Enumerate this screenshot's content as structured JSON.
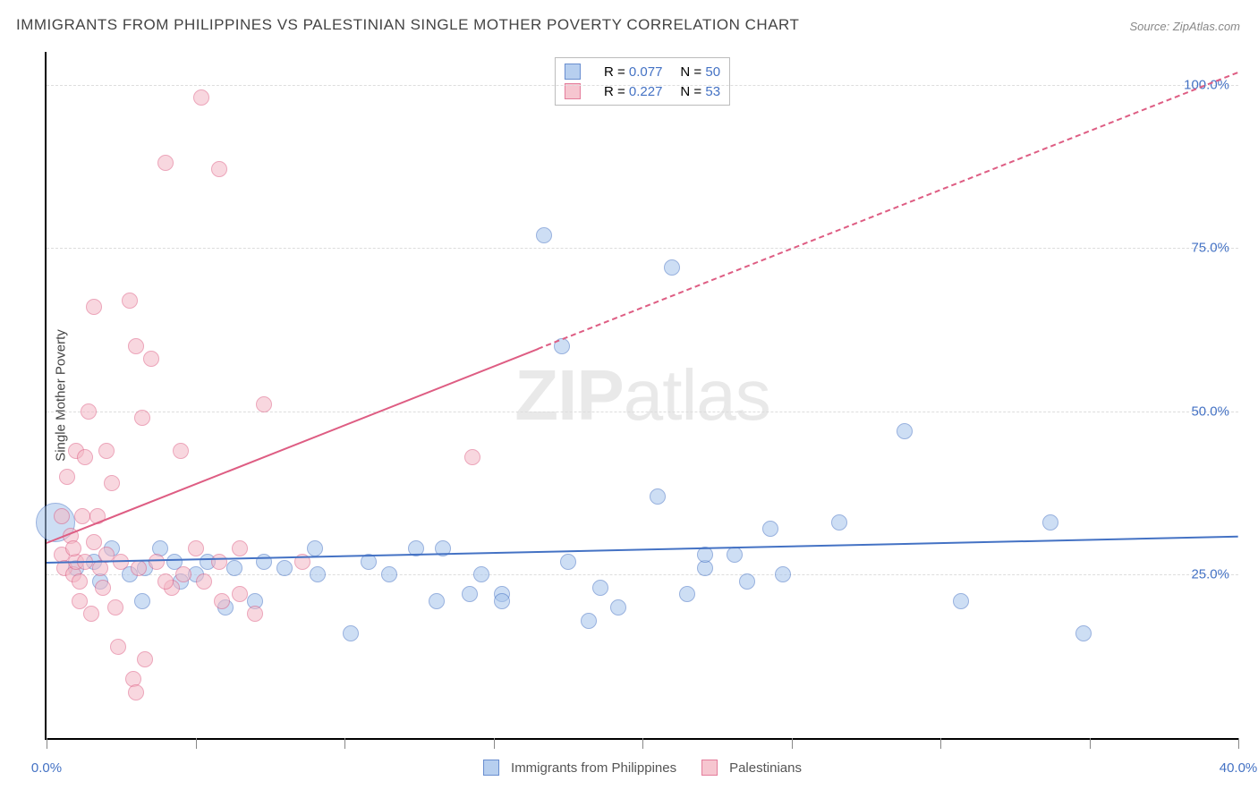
{
  "title": "IMMIGRANTS FROM PHILIPPINES VS PALESTINIAN SINGLE MOTHER POVERTY CORRELATION CHART",
  "source_label": "Source: ZipAtlas.com",
  "ylabel": "Single Mother Poverty",
  "watermark_parts": [
    "ZIP",
    "atlas"
  ],
  "plot": {
    "type": "scatter",
    "xlim": [
      0,
      40
    ],
    "ylim": [
      0,
      105
    ],
    "x_ticks": [
      0,
      40
    ],
    "x_tick_labels": [
      "0.0%",
      "40.0%"
    ],
    "x_minor_ticks": [
      0,
      5,
      10,
      15,
      20,
      25,
      30,
      35,
      40
    ],
    "y_ticks": [
      25,
      50,
      75,
      100
    ],
    "y_tick_labels": [
      "25.0%",
      "50.0%",
      "75.0%",
      "100.0%"
    ],
    "background_color": "#ffffff",
    "grid_color": "#dddddd",
    "axis_color": "#000000",
    "tick_label_color": "#4472c4"
  },
  "series": [
    {
      "name": "Immigrants from Philippines",
      "fill_color": "#a6c4ec",
      "stroke_color": "#4472c4",
      "fill_opacity": 0.55,
      "trend": {
        "x1": 0,
        "y1": 27,
        "x2": 40,
        "y2": 31,
        "color": "#4472c4",
        "width": 2.5,
        "solid_to_x": 40
      },
      "legend_stats": {
        "R": "0.077",
        "N": "50"
      },
      "points": [
        {
          "x": 0.3,
          "y": 33,
          "r": 22
        },
        {
          "x": 1.0,
          "y": 26,
          "r": 9
        },
        {
          "x": 1.6,
          "y": 27,
          "r": 9
        },
        {
          "x": 1.8,
          "y": 24,
          "r": 9
        },
        {
          "x": 2.2,
          "y": 29,
          "r": 9
        },
        {
          "x": 2.8,
          "y": 25,
          "r": 9
        },
        {
          "x": 3.2,
          "y": 21,
          "r": 9
        },
        {
          "x": 3.3,
          "y": 26,
          "r": 9
        },
        {
          "x": 3.8,
          "y": 29,
          "r": 9
        },
        {
          "x": 4.3,
          "y": 27,
          "r": 9
        },
        {
          "x": 4.5,
          "y": 24,
          "r": 9
        },
        {
          "x": 5.0,
          "y": 25,
          "r": 9
        },
        {
          "x": 5.4,
          "y": 27,
          "r": 9
        },
        {
          "x": 6.0,
          "y": 20,
          "r": 9
        },
        {
          "x": 6.3,
          "y": 26,
          "r": 9
        },
        {
          "x": 7.0,
          "y": 21,
          "r": 9
        },
        {
          "x": 7.3,
          "y": 27,
          "r": 9
        },
        {
          "x": 8.0,
          "y": 26,
          "r": 9
        },
        {
          "x": 9.0,
          "y": 29,
          "r": 9
        },
        {
          "x": 9.1,
          "y": 25,
          "r": 9
        },
        {
          "x": 10.2,
          "y": 16,
          "r": 9
        },
        {
          "x": 10.8,
          "y": 27,
          "r": 9
        },
        {
          "x": 11.5,
          "y": 25,
          "r": 9
        },
        {
          "x": 12.4,
          "y": 29,
          "r": 9
        },
        {
          "x": 13.1,
          "y": 21,
          "r": 9
        },
        {
          "x": 13.3,
          "y": 29,
          "r": 9
        },
        {
          "x": 14.2,
          "y": 22,
          "r": 9
        },
        {
          "x": 14.6,
          "y": 25,
          "r": 9
        },
        {
          "x": 15.3,
          "y": 22,
          "r": 9
        },
        {
          "x": 15.3,
          "y": 21,
          "r": 9
        },
        {
          "x": 16.7,
          "y": 77,
          "r": 9
        },
        {
          "x": 17.3,
          "y": 60,
          "r": 9
        },
        {
          "x": 18.2,
          "y": 18,
          "r": 9
        },
        {
          "x": 18.6,
          "y": 23,
          "r": 9
        },
        {
          "x": 19.2,
          "y": 20,
          "r": 9
        },
        {
          "x": 20.5,
          "y": 37,
          "r": 9
        },
        {
          "x": 21.0,
          "y": 72,
          "r": 9
        },
        {
          "x": 22.1,
          "y": 26,
          "r": 9
        },
        {
          "x": 22.1,
          "y": 28,
          "r": 9
        },
        {
          "x": 23.1,
          "y": 28,
          "r": 9
        },
        {
          "x": 23.5,
          "y": 24,
          "r": 9
        },
        {
          "x": 24.3,
          "y": 32,
          "r": 9
        },
        {
          "x": 24.7,
          "y": 25,
          "r": 9
        },
        {
          "x": 26.6,
          "y": 33,
          "r": 9
        },
        {
          "x": 28.8,
          "y": 47,
          "r": 9
        },
        {
          "x": 30.7,
          "y": 21,
          "r": 9
        },
        {
          "x": 33.7,
          "y": 33,
          "r": 9
        },
        {
          "x": 34.8,
          "y": 16,
          "r": 9
        },
        {
          "x": 21.5,
          "y": 22,
          "r": 9
        },
        {
          "x": 17.5,
          "y": 27,
          "r": 9
        }
      ]
    },
    {
      "name": "Palestinians",
      "fill_color": "#f4b8c5",
      "stroke_color": "#de5d83",
      "fill_opacity": 0.55,
      "trend": {
        "x1": 0,
        "y1": 30,
        "x2": 40,
        "y2": 102,
        "color": "#de5d83",
        "width": 2.5,
        "solid_to_x": 16.5
      },
      "legend_stats": {
        "R": "0.227",
        "N": "53"
      },
      "points": [
        {
          "x": 0.5,
          "y": 28,
          "r": 9
        },
        {
          "x": 0.5,
          "y": 34,
          "r": 9
        },
        {
          "x": 0.6,
          "y": 26,
          "r": 9
        },
        {
          "x": 0.7,
          "y": 40,
          "r": 9
        },
        {
          "x": 0.8,
          "y": 31,
          "r": 9
        },
        {
          "x": 0.9,
          "y": 25,
          "r": 9
        },
        {
          "x": 1.0,
          "y": 27,
          "r": 9
        },
        {
          "x": 1.0,
          "y": 44,
          "r": 9
        },
        {
          "x": 1.1,
          "y": 21,
          "r": 9
        },
        {
          "x": 1.1,
          "y": 24,
          "r": 9
        },
        {
          "x": 1.3,
          "y": 43,
          "r": 9
        },
        {
          "x": 1.3,
          "y": 27,
          "r": 9
        },
        {
          "x": 1.4,
          "y": 50,
          "r": 9
        },
        {
          "x": 1.5,
          "y": 19,
          "r": 9
        },
        {
          "x": 1.6,
          "y": 66,
          "r": 9
        },
        {
          "x": 1.6,
          "y": 30,
          "r": 9
        },
        {
          "x": 1.8,
          "y": 26,
          "r": 9
        },
        {
          "x": 1.9,
          "y": 23,
          "r": 9
        },
        {
          "x": 2.0,
          "y": 44,
          "r": 9
        },
        {
          "x": 2.2,
          "y": 39,
          "r": 9
        },
        {
          "x": 2.3,
          "y": 20,
          "r": 9
        },
        {
          "x": 2.5,
          "y": 27,
          "r": 9
        },
        {
          "x": 2.8,
          "y": 67,
          "r": 9
        },
        {
          "x": 2.9,
          "y": 9,
          "r": 9
        },
        {
          "x": 3.0,
          "y": 7,
          "r": 9
        },
        {
          "x": 3.0,
          "y": 60,
          "r": 9
        },
        {
          "x": 3.1,
          "y": 26,
          "r": 9
        },
        {
          "x": 3.2,
          "y": 49,
          "r": 9
        },
        {
          "x": 3.3,
          "y": 12,
          "r": 9
        },
        {
          "x": 3.5,
          "y": 58,
          "r": 9
        },
        {
          "x": 3.7,
          "y": 27,
          "r": 9
        },
        {
          "x": 4.0,
          "y": 88,
          "r": 9
        },
        {
          "x": 4.2,
          "y": 23,
          "r": 9
        },
        {
          "x": 4.5,
          "y": 44,
          "r": 9
        },
        {
          "x": 4.6,
          "y": 25,
          "r": 9
        },
        {
          "x": 5.0,
          "y": 29,
          "r": 9
        },
        {
          "x": 5.2,
          "y": 98,
          "r": 9
        },
        {
          "x": 5.3,
          "y": 24,
          "r": 9
        },
        {
          "x": 5.8,
          "y": 87,
          "r": 9
        },
        {
          "x": 5.8,
          "y": 27,
          "r": 9
        },
        {
          "x": 5.9,
          "y": 21,
          "r": 9
        },
        {
          "x": 6.5,
          "y": 29,
          "r": 9
        },
        {
          "x": 6.5,
          "y": 22,
          "r": 9
        },
        {
          "x": 7.0,
          "y": 19,
          "r": 9
        },
        {
          "x": 7.3,
          "y": 51,
          "r": 9
        },
        {
          "x": 8.6,
          "y": 27,
          "r": 9
        },
        {
          "x": 14.3,
          "y": 43,
          "r": 9
        },
        {
          "x": 2.4,
          "y": 14,
          "r": 9
        },
        {
          "x": 2.0,
          "y": 28,
          "r": 9
        },
        {
          "x": 1.2,
          "y": 34,
          "r": 9
        },
        {
          "x": 0.9,
          "y": 29,
          "r": 9
        },
        {
          "x": 1.7,
          "y": 34,
          "r": 9
        },
        {
          "x": 4.0,
          "y": 24,
          "r": 9
        }
      ]
    }
  ],
  "legend_top_hdr": {
    "R": "R =",
    "N": "N ="
  },
  "legend_bottom_labels": [
    "Immigrants from Philippines",
    "Palestinians"
  ]
}
